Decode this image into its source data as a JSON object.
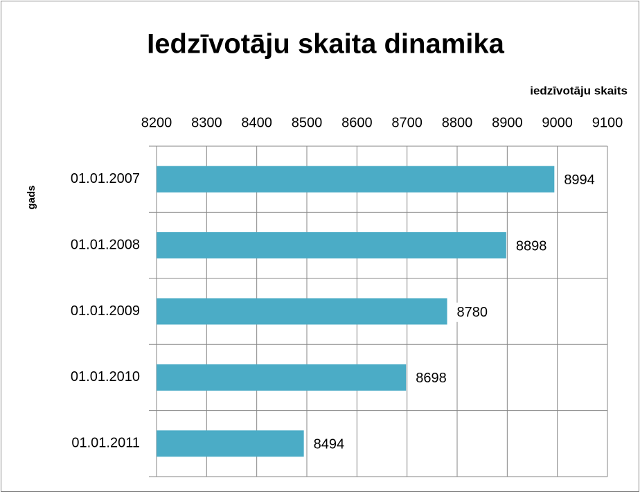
{
  "chart_data": {
    "type": "bar",
    "orientation": "horizontal",
    "title": "Iedzīvotāju skaita dinamika",
    "x_label": "iedzīvotāju skaits",
    "y_label": "gads",
    "categories": [
      "01.01.2007",
      "01.01.2008",
      "01.01.2009",
      "01.01.2010",
      "01.01.2011"
    ],
    "values": [
      8994,
      8898,
      8780,
      8698,
      8494
    ],
    "color": "#4bacc6",
    "xlim": [
      8200,
      9100
    ],
    "xticks": [
      8200,
      8300,
      8400,
      8500,
      8600,
      8700,
      8800,
      8900,
      9000,
      9100
    ],
    "grid": true
  }
}
